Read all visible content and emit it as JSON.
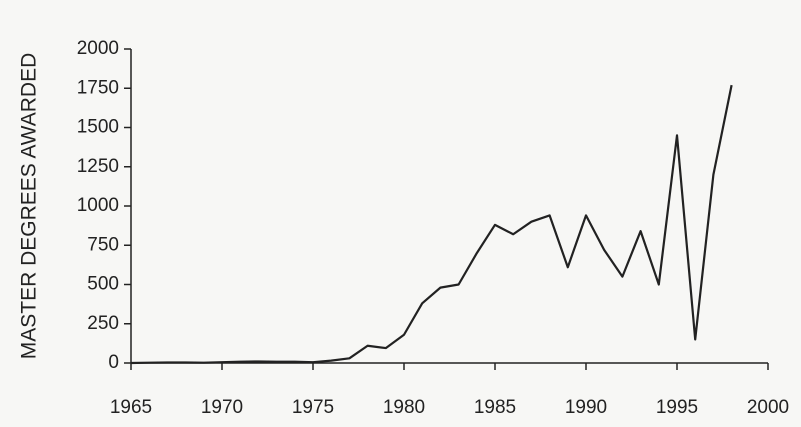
{
  "chart_data": {
    "type": "line",
    "y_label": "MASTER DEGREES AWARDED",
    "x": [
      1965,
      1966,
      1967,
      1968,
      1969,
      1970,
      1971,
      1972,
      1973,
      1974,
      1975,
      1976,
      1977,
      1978,
      1979,
      1980,
      1981,
      1982,
      1983,
      1984,
      1985,
      1986,
      1987,
      1988,
      1989,
      1990,
      1991,
      1992,
      1993,
      1994,
      1995,
      1996,
      1997,
      1998
    ],
    "series": [
      {
        "color": "#222222",
        "values": [
          0,
          2,
          3,
          3,
          2,
          5,
          8,
          10,
          8,
          8,
          5,
          15,
          30,
          110,
          95,
          180,
          380,
          480,
          500,
          700,
          880,
          820,
          900,
          940,
          610,
          940,
          720,
          550,
          840,
          500,
          1450,
          150,
          1200,
          1770
        ]
      }
    ],
    "xlim": [
      1965,
      2000
    ],
    "xticks": [
      1965,
      1970,
      1975,
      1980,
      1985,
      1990,
      1995,
      2000
    ],
    "ylim": [
      0,
      2000
    ],
    "yticks": [
      0,
      250,
      500,
      750,
      1000,
      1250,
      1500,
      1750,
      2000
    ]
  }
}
